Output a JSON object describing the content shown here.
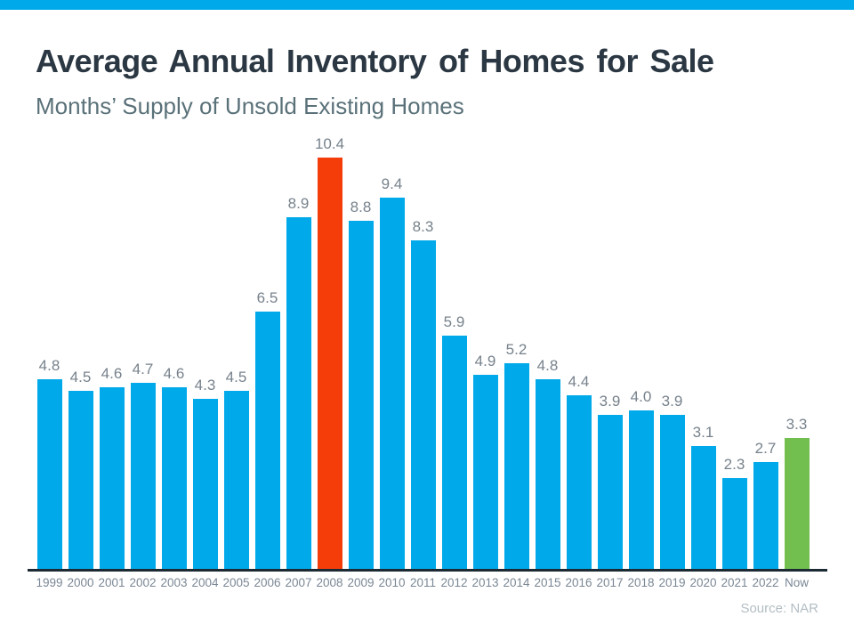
{
  "header": {
    "title": "Average Annual Inventory of Homes for Sale",
    "subtitle": "Months’ Supply of Unsold Existing Homes"
  },
  "colors": {
    "accent_strip": "#00a9e9",
    "bar_default": "#00a9e9",
    "bar_highlight_2008": "#f53d0a",
    "bar_highlight_now": "#72be4f",
    "axis_line": "#1c2a33",
    "title_text": "#2b3843",
    "subtitle_text": "#5a7179",
    "value_label_text": "#77828c",
    "x_label_text": "#7a8795",
    "source_text": "#b3bec4"
  },
  "chart_data": {
    "type": "bar",
    "title": "Average Annual Inventory of Homes for Sale",
    "subtitle": "Months’ Supply of Unsold Existing Homes",
    "categories": [
      "1999",
      "2000",
      "2001",
      "2002",
      "2003",
      "2004",
      "2005",
      "2006",
      "2007",
      "2008",
      "2009",
      "2010",
      "2011",
      "2012",
      "2013",
      "2014",
      "2015",
      "2016",
      "2017",
      "2018",
      "2019",
      "2020",
      "2021",
      "2022",
      "Now"
    ],
    "values": [
      4.8,
      4.5,
      4.6,
      4.7,
      4.6,
      4.3,
      4.5,
      6.5,
      8.9,
      10.4,
      8.8,
      9.4,
      8.3,
      5.9,
      4.9,
      5.2,
      4.8,
      4.4,
      3.9,
      4.0,
      3.9,
      3.1,
      2.3,
      2.7,
      3.3
    ],
    "value_labels": [
      "4.8",
      "4.5",
      "4.6",
      "4.7",
      "4.6",
      "4.3",
      "4.5",
      "6.5",
      "8.9",
      "10.4",
      "8.8",
      "9.4",
      "8.3",
      "5.9",
      "4.9",
      "5.2",
      "4.8",
      "4.4",
      "3.9",
      "4.0",
      "3.9",
      "3.1",
      "2.3",
      "2.7",
      "3.3"
    ],
    "highlight_bars": {
      "2008": "#f53d0a",
      "Now": "#72be4f"
    },
    "default_bar_color": "#00a9e9",
    "xlabel": "",
    "ylabel": "",
    "ylim": [
      0,
      11
    ],
    "grid": false,
    "legend": false,
    "data_labels_position": "above-bars",
    "source": "Source: NAR"
  }
}
